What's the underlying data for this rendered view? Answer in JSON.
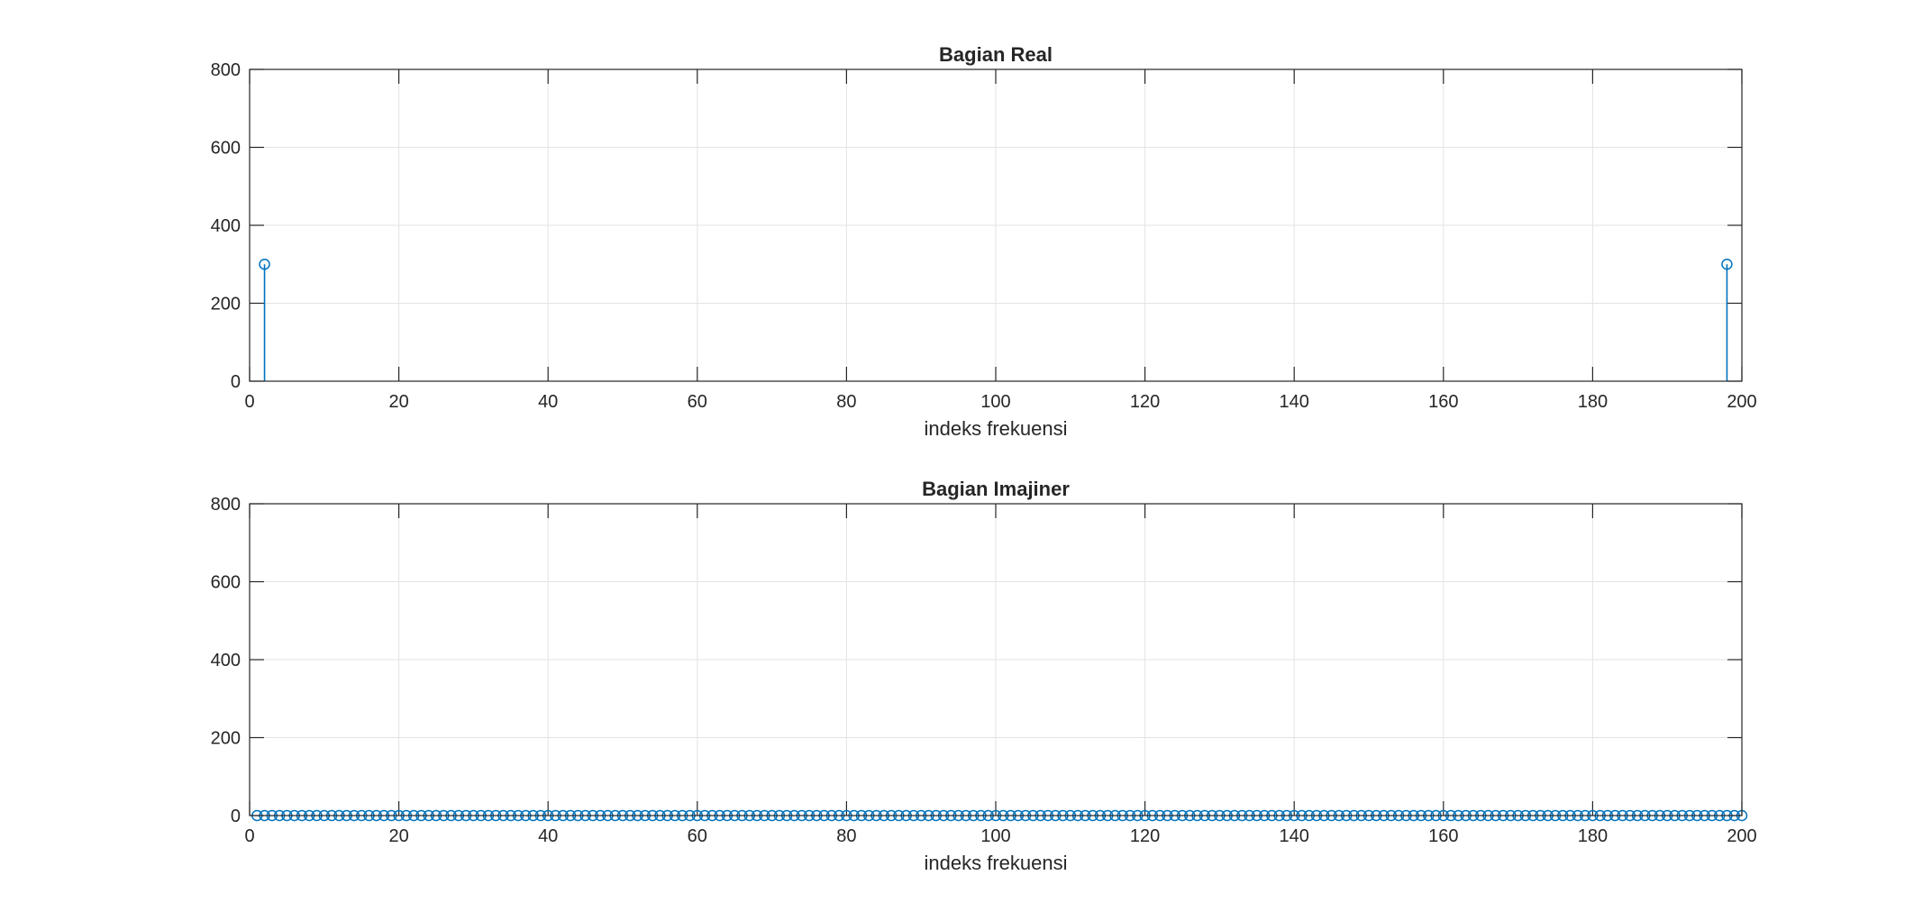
{
  "chart_data": [
    {
      "type": "stem",
      "title": "Bagian Real",
      "xlabel": "indeks frekuensi",
      "ylabel": "",
      "xlim": [
        0,
        200
      ],
      "ylim": [
        0,
        800
      ],
      "xticks": [
        "0",
        "20",
        "40",
        "60",
        "80",
        "100",
        "120",
        "140",
        "160",
        "180",
        "200"
      ],
      "yticks": [
        "0",
        "200",
        "400",
        "600",
        "800"
      ],
      "grid": true,
      "color": "#0072BD",
      "x_range": [
        1,
        200
      ],
      "nonzero": [
        {
          "x": 2,
          "y": 300
        },
        {
          "x": 198,
          "y": 300
        }
      ],
      "markers_on_zero": false
    },
    {
      "type": "stem",
      "title": "Bagian Imajiner",
      "xlabel": "indeks frekuensi",
      "ylabel": "",
      "xlim": [
        0,
        200
      ],
      "ylim": [
        0,
        800
      ],
      "xticks": [
        "0",
        "20",
        "40",
        "60",
        "80",
        "100",
        "120",
        "140",
        "160",
        "180",
        "200"
      ],
      "yticks": [
        "0",
        "200",
        "400",
        "600",
        "800"
      ],
      "grid": true,
      "color": "#0072BD",
      "x_range": [
        1,
        200
      ],
      "nonzero": [],
      "markers_on_zero": true
    }
  ]
}
